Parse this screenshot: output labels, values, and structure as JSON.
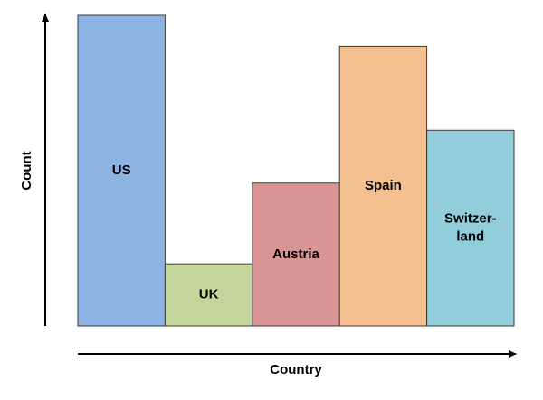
{
  "chart_data": {
    "type": "bar",
    "x_label": "Country",
    "y_label": "Count",
    "categories": [
      "US",
      "UK",
      "Austria",
      "Spain",
      "Switzer-\nland"
    ],
    "values": [
      100,
      20,
      46,
      90,
      63
    ],
    "colors": [
      "#8db3e2",
      "#c3d69b",
      "#d99594",
      "#f5c08f",
      "#92cddc"
    ],
    "ylim": [
      0,
      100
    ]
  }
}
